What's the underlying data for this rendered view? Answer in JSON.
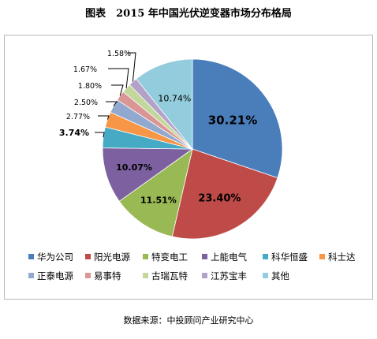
{
  "figure_title": "图表　2015 年中国光伏逆变器市场分布格局",
  "source": "数据来源：中投顾问产业研究中心",
  "chart_data": {
    "type": "pie",
    "title": "",
    "categories": [
      "华为公司",
      "阳光电源",
      "特变电工",
      "上能电气",
      "科华恒盛",
      "科士达",
      "正泰电源",
      "易事特",
      "古瑞瓦特",
      "江苏宝丰",
      "其他"
    ],
    "values": [
      30.21,
      23.4,
      11.51,
      10.07,
      3.74,
      2.77,
      2.5,
      1.8,
      1.67,
      1.58,
      10.74
    ],
    "labels": [
      "30.21%",
      "23.40%",
      "11.51%",
      "10.07%",
      "3.74%",
      "2.77%",
      "2.50%",
      "1.80%",
      "1.67%",
      "1.58%",
      "10.74%"
    ],
    "colors": [
      "#4a7ebb",
      "#be4b48",
      "#98b954",
      "#7d60a0",
      "#46aac5",
      "#f79646",
      "#92a9cf",
      "#d99694",
      "#c3d69b",
      "#b3a2c7",
      "#93cddd"
    ],
    "legend_position": "bottom"
  }
}
